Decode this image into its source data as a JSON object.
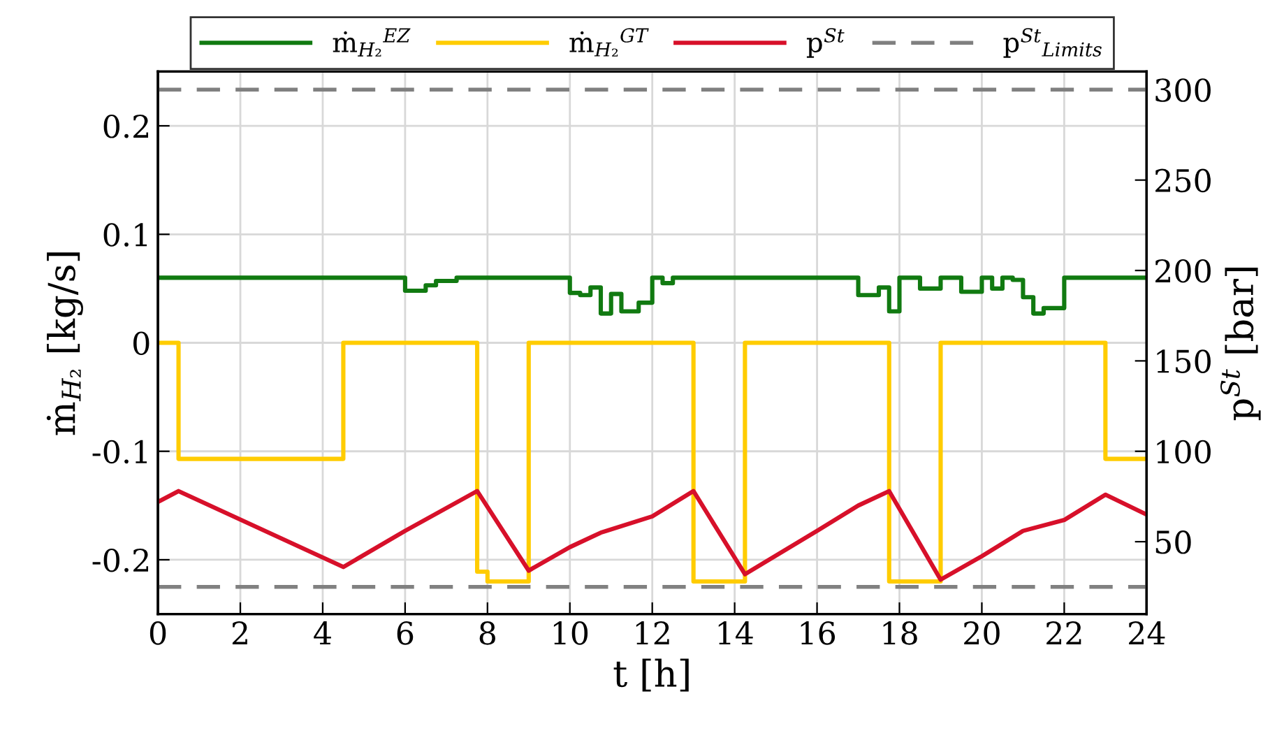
{
  "chart_data": {
    "type": "line",
    "xlabel": "t [h]",
    "ylabel": "ṁ$_{H₂}$ [kg/s]",
    "y2label": "p$^{St}$ [bar]",
    "xlim": [
      0,
      24
    ],
    "xticks": [
      0,
      2,
      4,
      6,
      8,
      10,
      12,
      14,
      16,
      18,
      20,
      22,
      24
    ],
    "ylim": [
      -0.25,
      0.25
    ],
    "yticks": [
      -0.2,
      -0.1,
      0,
      0.1,
      0.2
    ],
    "y2lim": [
      10,
      310
    ],
    "y2ticks": [
      50,
      100,
      150,
      200,
      250,
      300
    ],
    "grid": true,
    "legend": "top",
    "line_style": "solid",
    "marker": "none",
    "series": [
      {
        "name": "ṁ$_{H₂}$$^{EZ}$",
        "type": "step",
        "color": "#117a11",
        "x": [
          0,
          6.0,
          6.5,
          6.75,
          7.25,
          10.0,
          10.25,
          10.5,
          10.75,
          11.0,
          11.25,
          11.67,
          12.0,
          12.25,
          12.5,
          17.0,
          17.5,
          17.75,
          18.0,
          18.5,
          19.0,
          19.5,
          20.0,
          20.25,
          20.5,
          20.75,
          21.0,
          21.25,
          21.5,
          22.0,
          24
        ],
        "values": [
          0.06,
          0.048,
          0.053,
          0.057,
          0.06,
          0.046,
          0.044,
          0.051,
          0.027,
          0.045,
          0.029,
          0.037,
          0.06,
          0.055,
          0.06,
          0.044,
          0.051,
          0.029,
          0.06,
          0.05,
          0.06,
          0.047,
          0.06,
          0.05,
          0.06,
          0.058,
          0.042,
          0.027,
          0.032,
          0.06,
          0.06
        ]
      },
      {
        "name": "ṁ$_{H₂}$$^{GT}$",
        "type": "step",
        "color": "#ffcc00",
        "x": [
          0,
          0.5,
          4.5,
          7.75,
          8.0,
          9.0,
          13.0,
          14.25,
          17.75,
          19.0,
          23.0,
          24
        ],
        "values": [
          0,
          -0.107,
          0,
          -0.211,
          -0.22,
          0,
          -0.22,
          0,
          -0.22,
          0,
          -0.107,
          -0.107
        ]
      },
      {
        "name": "p$^{St}$",
        "axis": "y2",
        "color": "#d7102a",
        "x": [
          0,
          0.5,
          4.5,
          6.0,
          7.75,
          9.0,
          10.0,
          10.75,
          12.0,
          13.0,
          14.25,
          16.0,
          17.0,
          17.75,
          19.0,
          20.0,
          21.0,
          22.0,
          23.0,
          24
        ],
        "values": [
          72,
          78,
          36,
          56,
          78,
          34,
          47,
          55,
          64,
          78,
          32,
          56,
          70,
          78,
          29,
          42,
          56,
          62,
          76,
          65
        ]
      }
    ],
    "ref_lines": [
      {
        "axis": "y2",
        "value": 300,
        "label": "p$^{St}$$_{Limits}$",
        "color": "#808080",
        "line_style": "dashed"
      },
      {
        "axis": "y2",
        "value": 25,
        "color": "#808080",
        "line_style": "dashed"
      }
    ]
  }
}
